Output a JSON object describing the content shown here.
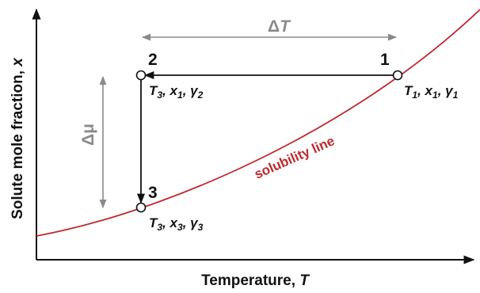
{
  "axes": {
    "x_label_prefix": "Temperature, ",
    "x_label_var": "T",
    "y_label_prefix": "Solute mole fraction, ",
    "y_label_var": "x"
  },
  "points": [
    {
      "number": "1",
      "T": "T",
      "T_sub": "1",
      "x": "x",
      "x_sub": "1",
      "g": "γ",
      "g_sub": "1"
    },
    {
      "number": "2",
      "T": "T",
      "T_sub": "3",
      "x": "x",
      "x_sub": "1",
      "g": "γ",
      "g_sub": "2"
    },
    {
      "number": "3",
      "T": "T",
      "T_sub": "3",
      "x": "x",
      "x_sub": "3",
      "g": "γ",
      "g_sub": "3"
    }
  ],
  "delta_T": {
    "delta": "Δ",
    "var": "T"
  },
  "delta_mu": "Δμ",
  "curve_label": "solubility line",
  "colors": {
    "curve": "#c0282d",
    "dimension_arrow": "#8a8a8a",
    "path": "#111111",
    "axes": "#111111"
  }
}
